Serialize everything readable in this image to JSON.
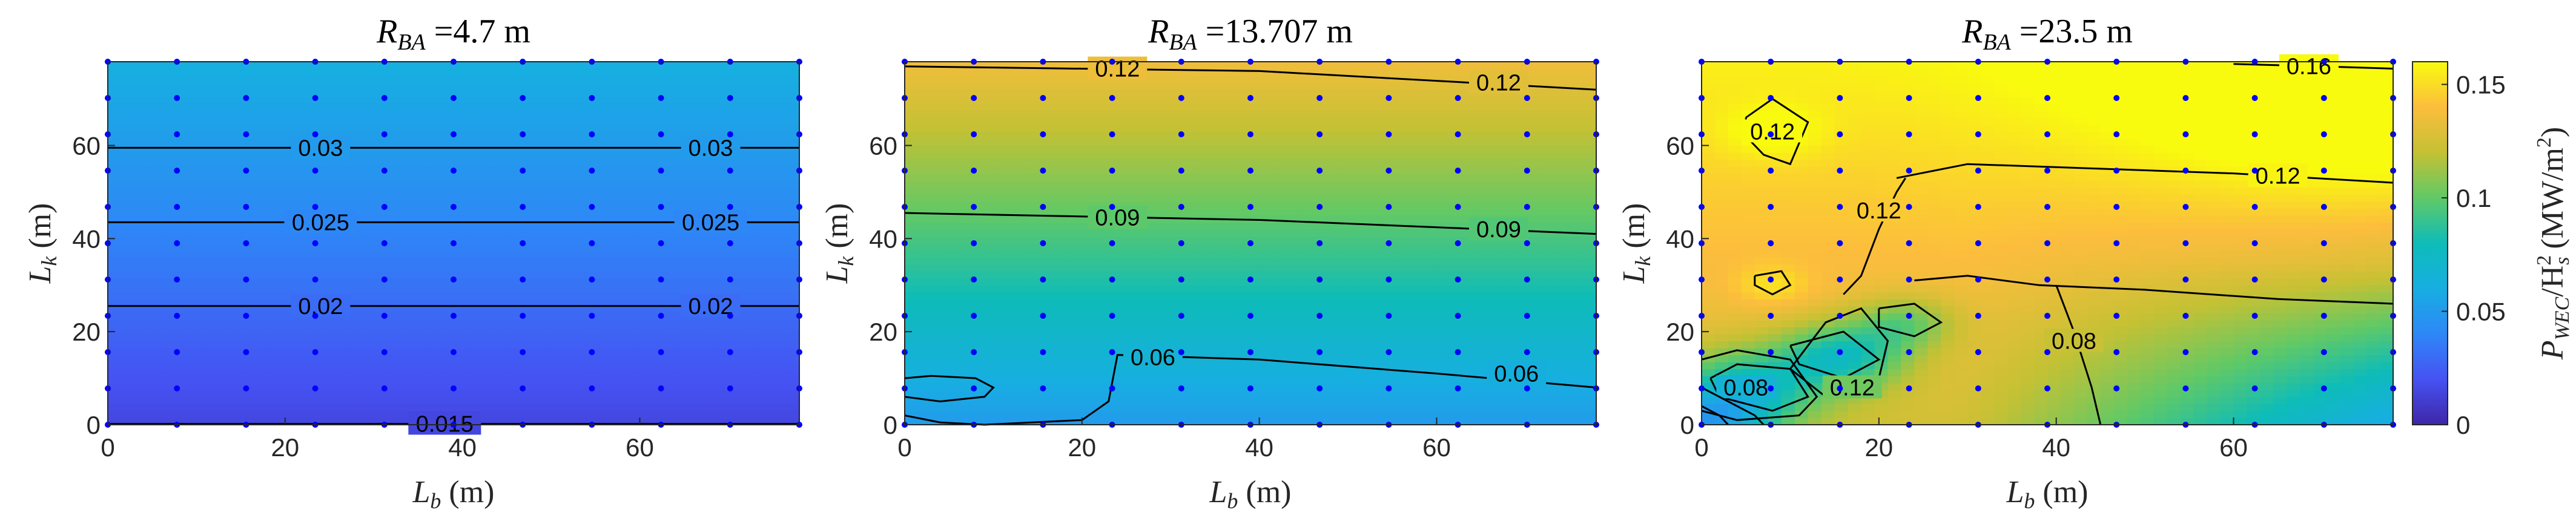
{
  "chart_data": {
    "type": "heatmap",
    "panels": [
      {
        "title": "R_BA = 4.7 m",
        "title_prefix": "R",
        "title_sub": "BA",
        "title_value": "=4.7 m",
        "xlabel_base": "L",
        "xlabel_sub": "b",
        "xlabel_unit": " (m)",
        "ylabel_base": "L",
        "ylabel_sub": "k",
        "ylabel_unit": " (m)",
        "xlim": [
          0,
          78
        ],
        "ylim": [
          0,
          78
        ],
        "xticks": [
          0,
          20,
          40,
          60
        ],
        "yticks": [
          0,
          20,
          40,
          60
        ],
        "field": {
          "kind": "linear",
          "base": 0.0145,
          "slope": 0.0006
        },
        "contours": [
          {
            "label": "0.015",
            "points": [
              [
                0,
                0.2
              ],
              [
                78,
                0.2
              ]
            ],
            "labels": [
              [
                38,
                0.2
              ]
            ]
          },
          {
            "label": "0.02",
            "points": [
              [
                0,
                25.5
              ],
              [
                78,
                25.5
              ]
            ],
            "labels": [
              [
                24,
                25.5
              ],
              [
                68,
                25.5
              ]
            ]
          },
          {
            "label": "0.025",
            "points": [
              [
                0,
                43.5
              ],
              [
                78,
                43.5
              ]
            ],
            "labels": [
              [
                24,
                43.5
              ],
              [
                68,
                43.5
              ]
            ]
          },
          {
            "label": "0.03",
            "points": [
              [
                0,
                59.5
              ],
              [
                78,
                59.5
              ]
            ],
            "labels": [
              [
                24,
                59.5
              ],
              [
                68,
                59.5
              ]
            ]
          }
        ]
      },
      {
        "title": "R_BA = 13.707 m",
        "title_prefix": "R",
        "title_sub": "BA",
        "title_value": "=13.707 m",
        "xlabel_base": "L",
        "xlabel_sub": "b",
        "xlabel_unit": " (m)",
        "ylabel_base": "L",
        "ylabel_sub": "k",
        "ylabel_unit": " (m)",
        "xlim": [
          0,
          78
        ],
        "ylim": [
          0,
          78
        ],
        "xticks": [
          0,
          20,
          40,
          60
        ],
        "yticks": [
          0,
          20,
          40,
          60
        ],
        "field": {
          "kind": "linear",
          "base": 0.05,
          "slope": 0.0011
        },
        "contours": [
          {
            "label": "0.06",
            "points": [
              [
                0,
                2
              ],
              [
                4,
                0.5
              ],
              [
                9,
                0
              ],
              [
                20,
                1
              ],
              [
                23,
                5
              ],
              [
                24,
                15
              ],
              [
                40,
                14
              ],
              [
                60,
                11
              ],
              [
                78,
                8
              ]
            ],
            "labels": [
              [
                28,
                14.5
              ],
              [
                69,
                11
              ]
            ]
          },
          {
            "label": "0.09",
            "points": [
              [
                0,
                45.5
              ],
              [
                40,
                44
              ],
              [
                78,
                41
              ]
            ],
            "labels": [
              [
                24,
                44.5
              ],
              [
                67,
                42
              ]
            ]
          },
          {
            "label": "0.12",
            "points": [
              [
                0,
                77
              ],
              [
                40,
                76
              ],
              [
                78,
                72
              ]
            ],
            "labels": [
              [
                24,
                76.5
              ],
              [
                67,
                73.5
              ]
            ]
          },
          {
            "label": "",
            "points": [
              [
                0,
                10
              ],
              [
                3,
                10.5
              ],
              [
                8,
                10
              ],
              [
                10,
                8
              ],
              [
                9,
                6
              ],
              [
                4,
                5
              ],
              [
                0,
                6
              ]
            ],
            "labels": []
          }
        ]
      },
      {
        "title": "R_BA = 23.5 m",
        "title_prefix": "R",
        "title_sub": "BA",
        "title_value": "=23.5 m",
        "xlabel_base": "L",
        "xlabel_sub": "b",
        "xlabel_unit": " (m)",
        "ylabel_base": "L",
        "ylabel_sub": "k",
        "ylabel_unit": " (m)",
        "xlim": [
          0,
          78
        ],
        "ylim": [
          0,
          78
        ],
        "xticks": [
          0,
          20,
          40,
          60
        ],
        "yticks": [
          0,
          20,
          40,
          60
        ],
        "field": {
          "kind": "complex"
        },
        "contours": [
          {
            "label": "0.12",
            "points": [
              [
                5,
                66
              ],
              [
                8,
                70
              ],
              [
                12,
                65
              ],
              [
                10,
                56
              ],
              [
                7,
                58
              ],
              [
                5,
                62
              ],
              [
                5,
                66
              ]
            ],
            "labels": [
              [
                8,
                63
              ]
            ]
          },
          {
            "label": "0.12",
            "points": [
              [
                22,
                53
              ],
              [
                30,
                56
              ],
              [
                45,
                55
              ],
              [
                60,
                54
              ],
              [
                78,
                52
              ]
            ],
            "labels": [
              [
                65,
                53.5
              ]
            ]
          },
          {
            "label": "0.12",
            "points": [
              [
                16,
                28
              ],
              [
                18,
                32
              ],
              [
                20,
                42
              ],
              [
                22,
                50
              ],
              [
                23,
                53
              ]
            ],
            "labels": [
              [
                20,
                46
              ]
            ]
          },
          {
            "label": "0.16",
            "points": [
              [
                60,
                77.5
              ],
              [
                70,
                77
              ],
              [
                78,
                76.5
              ]
            ],
            "labels": [
              [
                68.5,
                77
              ]
            ]
          },
          {
            "label": "0.08",
            "points": [
              [
                40,
                30
              ],
              [
                42,
                20
              ],
              [
                44,
                8
              ],
              [
                45,
                0
              ]
            ],
            "labels": [
              [
                42,
                18
              ]
            ]
          },
          {
            "label": "",
            "points": [
              [
                38,
                30
              ],
              [
                50,
                29
              ],
              [
                65,
                27
              ],
              [
                78,
                26
              ]
            ],
            "labels": []
          },
          {
            "label": "",
            "points": [
              [
                24,
                31
              ],
              [
                30,
                32
              ],
              [
                38,
                30
              ]
            ],
            "labels": []
          },
          {
            "label": "",
            "points": [
              [
                6,
                32
              ],
              [
                9,
                33
              ],
              [
                10,
                30
              ],
              [
                8,
                28
              ],
              [
                6,
                30
              ],
              [
                6,
                32
              ]
            ],
            "labels": []
          },
          {
            "label": "",
            "points": [
              [
                20,
                25
              ],
              [
                24,
                26
              ],
              [
                27,
                22
              ],
              [
                24,
                19
              ],
              [
                20,
                21
              ],
              [
                20,
                25
              ]
            ],
            "labels": []
          },
          {
            "label": "",
            "points": [
              [
                10,
                17
              ],
              [
                16,
                20
              ],
              [
                20,
                14
              ],
              [
                16,
                10
              ],
              [
                11,
                13
              ],
              [
                10,
                17
              ]
            ],
            "labels": []
          },
          {
            "label": "0.12",
            "points": [
              [
                10,
                12
              ],
              [
                14,
                22
              ],
              [
                18,
                25
              ],
              [
                21,
                18
              ],
              [
                20,
                10
              ],
              [
                14,
                6
              ],
              [
                10,
                12
              ]
            ],
            "labels": [
              [
                17,
                8
              ]
            ]
          },
          {
            "label": "0.08",
            "points": [
              [
                1,
                10
              ],
              [
                4,
                13
              ],
              [
                10,
                12
              ],
              [
                12,
                6
              ],
              [
                8,
                3
              ],
              [
                2,
                6
              ],
              [
                1,
                10
              ]
            ],
            "labels": [
              [
                5,
                8
              ]
            ]
          },
          {
            "label": "",
            "points": [
              [
                0,
                14
              ],
              [
                4,
                16
              ],
              [
                10,
                14
              ],
              [
                13,
                6
              ],
              [
                11,
                2
              ],
              [
                4,
                1
              ],
              [
                0,
                3
              ]
            ],
            "labels": []
          },
          {
            "label": "",
            "points": [
              [
                0,
                8
              ],
              [
                3,
                5
              ],
              [
                6,
                2
              ],
              [
                7,
                0
              ]
            ],
            "labels": []
          },
          {
            "label": "",
            "points": [
              [
                0,
                4
              ],
              [
                2,
                2
              ],
              [
                3,
                0
              ]
            ],
            "labels": []
          }
        ]
      }
    ],
    "grid_points": {
      "x": [
        0,
        7.8,
        15.6,
        23.4,
        31.2,
        39,
        46.8,
        54.6,
        62.4,
        70.2,
        78
      ],
      "y": [
        0,
        7.8,
        15.6,
        23.4,
        31.2,
        39,
        46.8,
        54.6,
        62.4,
        70.2,
        78
      ]
    },
    "colorbar": {
      "label_base": "P",
      "label_sub1": "WEC",
      "label_mid": "/H",
      "label_sup": "2",
      "label_sub2": "s",
      "label_unit": " (MW/m",
      "label_unit_sup": "2",
      "label_unit_end": ")",
      "range": [
        0,
        0.16
      ],
      "ticks": [
        0,
        0.05,
        0.1,
        0.15
      ],
      "tick_labels": [
        "0",
        "0.05",
        "0.1",
        "0.15"
      ],
      "colormap": "parula"
    }
  }
}
